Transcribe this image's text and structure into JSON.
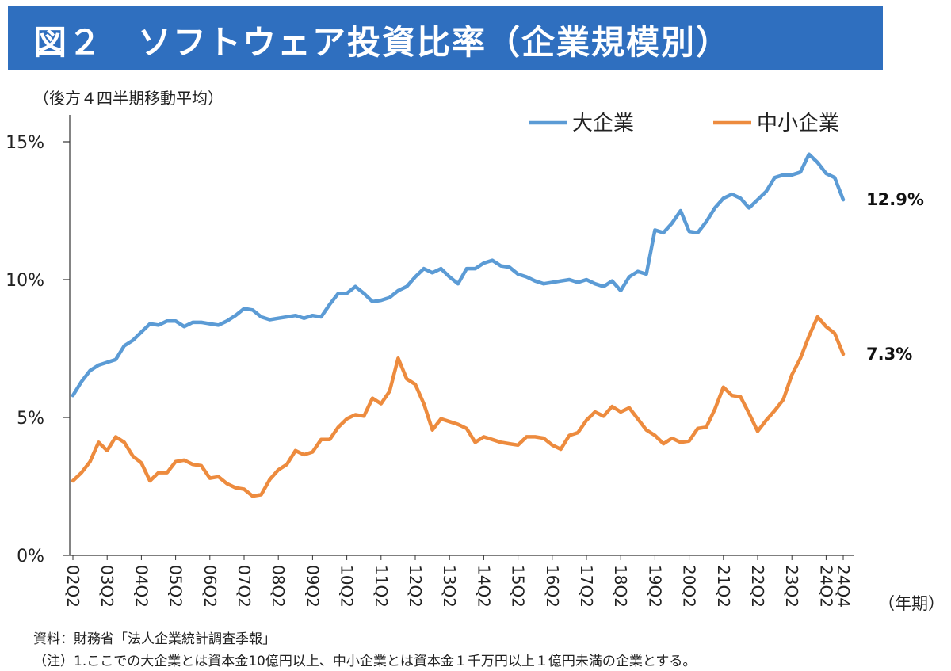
{
  "header": {
    "title": "図２　ソフトウェア投資比率（企業規模別）"
  },
  "footer": {
    "source": "資料：財務省「法人企業統計調査季報」",
    "note1": "（注）1.ここでの大企業とは資本金10億円以上、中小企業とは資本金１千万円以上１億円未満の企業とする。"
  },
  "chart_data": {
    "type": "line",
    "subtitle": "（後方４四半期移動平均）",
    "xlabel": "（年期）",
    "ylabel": "",
    "ylim": [
      0,
      15
    ],
    "y_ticks": [
      "0%",
      "5%",
      "10%",
      "15%"
    ],
    "grid": false,
    "legend_position": "top-right",
    "x_tick_labels": [
      "02Q2",
      "03Q2",
      "04Q2",
      "05Q2",
      "06Q2",
      "07Q2",
      "08Q2",
      "09Q2",
      "10Q2",
      "11Q2",
      "12Q2",
      "13Q2",
      "14Q2",
      "15Q2",
      "16Q2",
      "17Q2",
      "18Q2",
      "19Q2",
      "20Q2",
      "21Q2",
      "22Q2",
      "23Q2",
      "24Q2",
      "24Q4"
    ],
    "x_start": "2002Q2",
    "x_end": "2024Q4",
    "series": [
      {
        "name": "大企業",
        "color": "#5b9bd5",
        "end_label": "12.9%",
        "values": [
          5.8,
          6.3,
          6.7,
          6.9,
          7.0,
          7.1,
          7.6,
          7.8,
          8.1,
          8.4,
          8.35,
          8.5,
          8.5,
          8.3,
          8.45,
          8.45,
          8.4,
          8.35,
          8.5,
          8.7,
          8.95,
          8.9,
          8.65,
          8.55,
          8.6,
          8.65,
          8.7,
          8.6,
          8.7,
          8.65,
          9.1,
          9.5,
          9.5,
          9.75,
          9.5,
          9.2,
          9.25,
          9.35,
          9.6,
          9.75,
          10.1,
          10.4,
          10.25,
          10.4,
          10.1,
          9.85,
          10.4,
          10.4,
          10.6,
          10.7,
          10.5,
          10.45,
          10.2,
          10.1,
          9.95,
          9.85,
          9.9,
          9.95,
          10.0,
          9.9,
          10.0,
          9.85,
          9.75,
          9.95,
          9.6,
          10.1,
          10.3,
          10.2,
          11.8,
          11.7,
          12.05,
          12.5,
          11.75,
          11.7,
          12.1,
          12.6,
          12.95,
          13.1,
          12.95,
          12.6,
          12.9,
          13.2,
          13.7,
          13.8,
          13.8,
          13.9,
          14.55,
          14.25,
          13.85,
          13.7,
          12.9
        ]
      },
      {
        "name": "中小企業",
        "color": "#ed8b3e",
        "end_label": "7.3%",
        "values": [
          2.7,
          3.0,
          3.4,
          4.1,
          3.8,
          4.3,
          4.1,
          3.6,
          3.35,
          2.7,
          3.0,
          3.0,
          3.4,
          3.45,
          3.3,
          3.25,
          2.8,
          2.85,
          2.6,
          2.45,
          2.4,
          2.15,
          2.2,
          2.75,
          3.1,
          3.3,
          3.8,
          3.65,
          3.75,
          4.2,
          4.2,
          4.65,
          4.95,
          5.1,
          5.05,
          5.7,
          5.5,
          5.95,
          7.15,
          6.4,
          6.2,
          5.5,
          4.55,
          4.95,
          4.85,
          4.75,
          4.6,
          4.1,
          4.3,
          4.2,
          4.1,
          4.05,
          4.0,
          4.3,
          4.3,
          4.25,
          4.0,
          3.85,
          4.35,
          4.45,
          4.9,
          5.2,
          5.05,
          5.4,
          5.2,
          5.35,
          4.95,
          4.55,
          4.35,
          4.05,
          4.25,
          4.1,
          4.15,
          4.6,
          4.65,
          5.3,
          6.1,
          5.8,
          5.75,
          5.15,
          4.5,
          4.9,
          5.25,
          5.65,
          6.55,
          7.15,
          7.95,
          8.65,
          8.3,
          8.05,
          7.3
        ]
      }
    ]
  }
}
